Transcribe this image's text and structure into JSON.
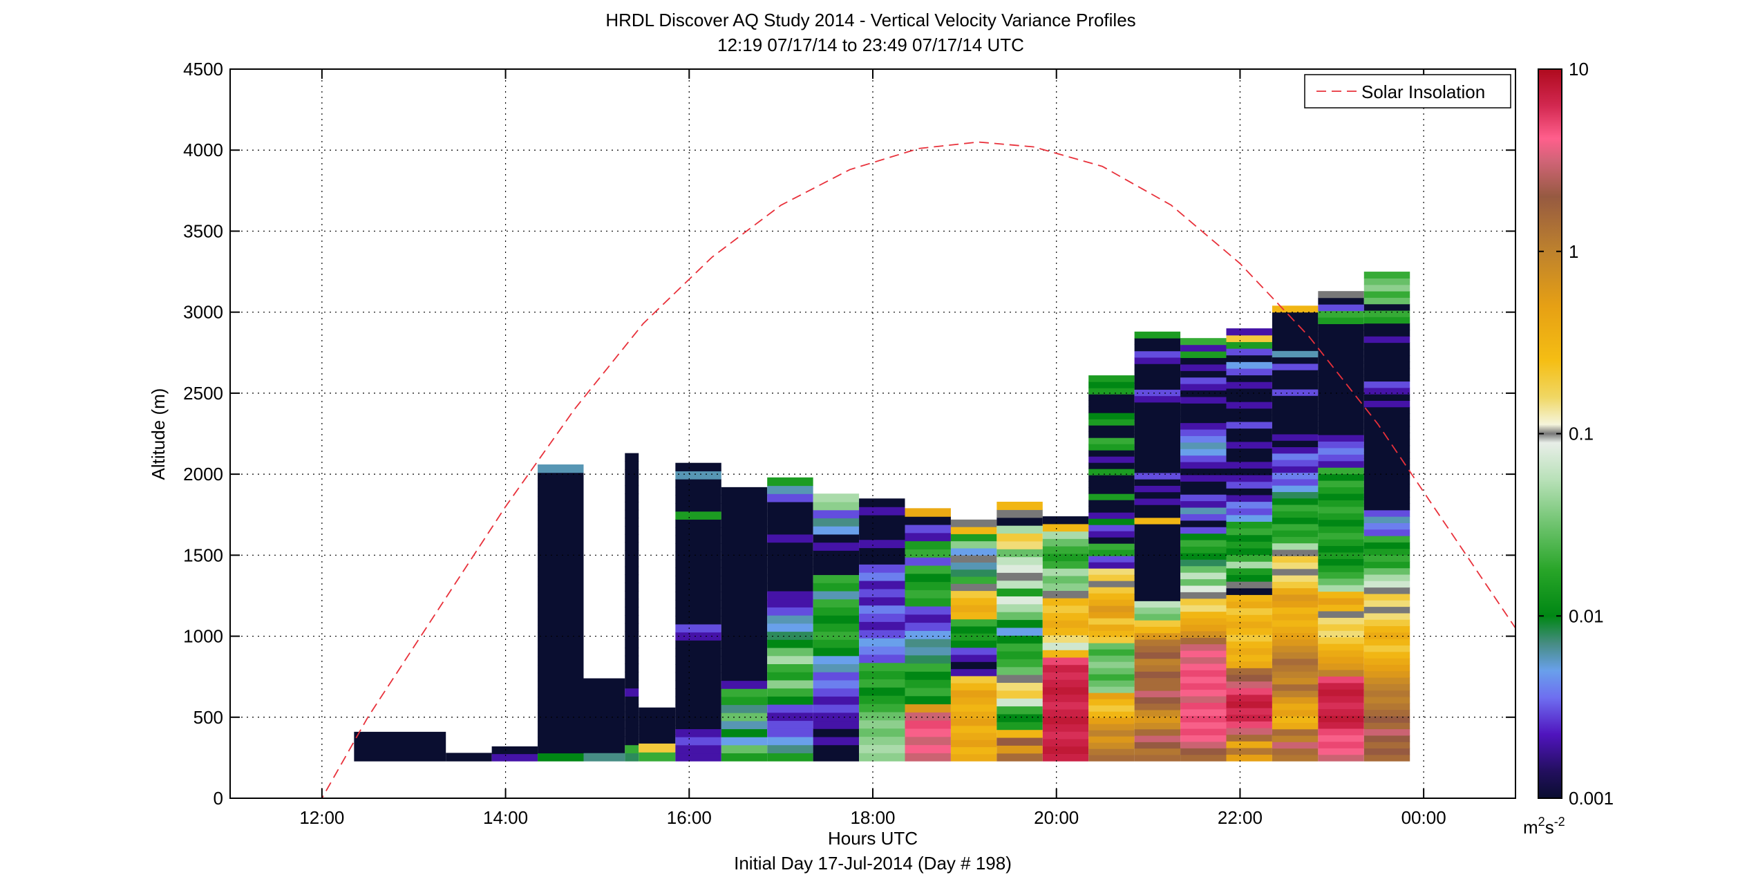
{
  "chart_data": {
    "type": "heatmap",
    "title": "HRDL Discover AQ Study 2014 - Vertical Velocity Variance Profiles",
    "subtitle": "12:19 07/17/14 to 23:49 07/17/14  UTC",
    "xlabel": "Hours UTC",
    "xlabel2": "Initial Day 17-Jul-2014 (Day # 198)",
    "ylabel": "Altitude (m)",
    "xlim": [
      11.0,
      25.0
    ],
    "ylim": [
      0,
      4500
    ],
    "x_ticks": [
      12,
      14,
      16,
      18,
      20,
      22,
      24
    ],
    "x_tick_labels": [
      "12:00",
      "14:00",
      "16:00",
      "18:00",
      "20:00",
      "22:00",
      "00:00"
    ],
    "y_ticks": [
      0,
      500,
      1000,
      1500,
      2000,
      2500,
      3000,
      3500,
      4000,
      4500
    ],
    "y_tick_labels": [
      "0",
      "500",
      "1000",
      "1500",
      "2000",
      "2500",
      "3000",
      "3500",
      "4000",
      "4500"
    ],
    "grid": true,
    "legend_position": "top-right",
    "colorbar": {
      "scale": "log",
      "range": [
        0.001,
        10
      ],
      "tick_values": [
        0.001,
        0.01,
        0.1,
        1,
        10
      ],
      "tick_labels": [
        "0.001",
        "0.01",
        "0.1",
        "1",
        "10"
      ],
      "unit_label": "m",
      "unit_sup1": "2",
      "unit_mid": "s",
      "unit_sup2": "-2"
    },
    "series": [
      {
        "name": "Solar Insolation",
        "type": "line",
        "style": "dashed",
        "color": "#e8303a",
        "points": [
          [
            11.8,
            -200
          ],
          [
            12.5,
            500
          ],
          [
            13.25,
            1150
          ],
          [
            14.0,
            1800
          ],
          [
            14.75,
            2400
          ],
          [
            15.5,
            2930
          ],
          [
            16.25,
            3340
          ],
          [
            17.0,
            3660
          ],
          [
            17.75,
            3880
          ],
          [
            18.5,
            4010
          ],
          [
            19.15,
            4050
          ],
          [
            19.75,
            4020
          ],
          [
            20.5,
            3900
          ],
          [
            21.25,
            3660
          ],
          [
            22.0,
            3300
          ],
          [
            22.75,
            2850
          ],
          [
            23.5,
            2310
          ],
          [
            24.25,
            1680
          ],
          [
            25.0,
            1050
          ]
        ]
      }
    ],
    "profiles": [
      {
        "start": 12.35,
        "end": 13.35,
        "bottom": 230,
        "top": 410,
        "values": [
          0.001
        ]
      },
      {
        "start": 13.35,
        "end": 13.85,
        "bottom": 230,
        "top": 280,
        "values": [
          0.001
        ]
      },
      {
        "start": 13.85,
        "end": 14.35,
        "bottom": 230,
        "top": 320,
        "values": [
          0.002,
          0.001
        ]
      },
      {
        "start": 14.35,
        "end": 14.85,
        "bottom": 230,
        "top": 2060,
        "values": [
          0.01,
          0.001,
          0.001,
          0.001,
          0.001,
          0.001,
          0.001,
          0.001,
          0.001,
          0.001,
          0.001,
          0.001,
          0.001,
          0.001,
          0.001,
          0.001,
          0.001,
          0.001,
          0.001,
          0.001,
          0.001,
          0.001,
          0.001,
          0.001,
          0.001,
          0.001,
          0.001,
          0.001,
          0.001,
          0.001,
          0.001,
          0.001,
          0.001,
          0.001,
          0.001,
          0.001,
          0.006
        ]
      },
      {
        "start": 14.85,
        "end": 15.3,
        "bottom": 230,
        "top": 740,
        "values": [
          0.007,
          0.001,
          0.001,
          0.001,
          0.001,
          0.001,
          0.001,
          0.001,
          0.001,
          0.001
        ]
      },
      {
        "start": 15.3,
        "end": 15.45,
        "bottom": 230,
        "top": 2130,
        "values": [
          0.008,
          0.02,
          0.001,
          0.001,
          0.001,
          0.001,
          0.001,
          0.001,
          0.002,
          0.001,
          0.001,
          0.001,
          0.001,
          0.001,
          0.001,
          0.001,
          0.001,
          0.001,
          0.001,
          0.001,
          0.001,
          0.001,
          0.001,
          0.001,
          0.001,
          0.001,
          0.001,
          0.001,
          0.001,
          0.001,
          0.001,
          0.001,
          0.001,
          0.001,
          0.001,
          0.001,
          0.001,
          0.001
        ]
      },
      {
        "start": 15.45,
        "end": 15.85,
        "bottom": 230,
        "top": 560,
        "values": [
          0.02,
          0.2,
          0.001,
          0.001,
          0.001,
          0.001
        ]
      },
      {
        "start": 15.85,
        "end": 16.35,
        "bottom": 230,
        "top": 2070,
        "values": [
          0.002,
          0.002,
          0.003,
          0.002,
          0.001,
          0.001,
          0.001,
          0.001,
          0.001,
          0.001,
          0.001,
          0.001,
          0.001,
          0.001,
          0.001,
          0.002,
          0.003,
          0.001,
          0.001,
          0.001,
          0.001,
          0.001,
          0.001,
          0.001,
          0.001,
          0.001,
          0.001,
          0.001,
          0.001,
          0.001,
          0.015,
          0.001,
          0.001,
          0.001,
          0.001,
          0.006,
          0.001
        ]
      },
      {
        "start": 16.35,
        "end": 16.85,
        "bottom": 230,
        "top": 1920,
        "values": [
          0.015,
          0.03,
          0.005,
          0.01,
          0.006,
          0.03,
          0.007,
          0.015,
          0.02,
          0.002,
          0.001,
          0.001,
          0.001,
          0.001,
          0.001,
          0.001,
          0.001,
          0.001,
          0.001,
          0.001,
          0.001,
          0.001,
          0.001,
          0.001,
          0.001,
          0.001,
          0.001,
          0.001,
          0.001,
          0.001,
          0.001,
          0.001,
          0.001,
          0.001
        ]
      },
      {
        "start": 16.85,
        "end": 17.35,
        "bottom": 230,
        "top": 1980,
        "values": [
          0.015,
          0.007,
          0.005,
          0.003,
          0.003,
          0.002,
          0.003,
          0.01,
          0.02,
          0.04,
          0.015,
          0.02,
          0.05,
          0.03,
          0.01,
          0.008,
          0.005,
          0.006,
          0.003,
          0.002,
          0.002,
          0.001,
          0.001,
          0.001,
          0.001,
          0.001,
          0.001,
          0.002,
          0.001,
          0.001,
          0.001,
          0.001,
          0.003,
          0.006,
          0.015
        ]
      },
      {
        "start": 17.35,
        "end": 17.85,
        "bottom": 230,
        "top": 1880,
        "values": [
          0.001,
          0.001,
          0.002,
          0.001,
          0.002,
          0.002,
          0.003,
          0.002,
          0.003,
          0.004,
          0.003,
          0.006,
          0.005,
          0.01,
          0.015,
          0.02,
          0.015,
          0.01,
          0.015,
          0.02,
          0.006,
          0.015,
          0.02,
          0.001,
          0.001,
          0.001,
          0.002,
          0.001,
          0.005,
          0.007,
          0.003,
          0.04,
          0.05
        ]
      },
      {
        "start": 17.85,
        "end": 18.35,
        "bottom": 230,
        "top": 1850,
        "values": [
          0.04,
          0.05,
          0.04,
          0.03,
          0.04,
          0.03,
          0.02,
          0.015,
          0.01,
          0.02,
          0.015,
          0.02,
          0.003,
          0.004,
          0.005,
          0.003,
          0.002,
          0.003,
          0.004,
          0.002,
          0.003,
          0.002,
          0.004,
          0.003,
          0.001,
          0.001,
          0.002,
          0.001,
          0.001,
          0.001,
          0.002,
          0.001
        ]
      },
      {
        "start": 18.35,
        "end": 18.85,
        "bottom": 230,
        "top": 1790,
        "values": [
          3,
          4,
          3,
          4,
          5,
          3,
          0.6,
          0.01,
          0.02,
          0.015,
          0.01,
          0.02,
          0.008,
          0.006,
          0.007,
          0.005,
          0.003,
          0.002,
          0.003,
          0.015,
          0.02,
          0.015,
          0.01,
          0.02,
          0.003,
          0.02,
          0.015,
          0.002,
          0.003,
          0.001,
          0.4
        ]
      },
      {
        "start": 18.85,
        "end": 19.35,
        "bottom": 230,
        "top": 1720,
        "values": [
          0.4,
          0.3,
          0.5,
          0.4,
          0.3,
          0.5,
          0.4,
          0.3,
          0.4,
          0.5,
          0.3,
          0.2,
          0.002,
          0.001,
          0.002,
          0.003,
          0.01,
          0.015,
          0.01,
          0.02,
          0.3,
          0.4,
          0.3,
          0.2,
          0.1,
          0.02,
          0.008,
          0.006,
          0.1,
          0.005,
          0.04,
          0.015,
          0.3,
          0.1
        ]
      },
      {
        "start": 19.35,
        "end": 19.85,
        "bottom": 230,
        "top": 1830,
        "values": [
          1.5,
          0.6,
          2,
          0.3,
          0.015,
          0.01,
          0.02,
          0.07,
          0.2,
          0.15,
          0.1,
          0.03,
          0.02,
          0.015,
          0.02,
          0.01,
          0.005,
          0.01,
          0.03,
          0.05,
          0.08,
          0.015,
          0.06,
          0.1,
          0.08,
          0.06,
          0.03,
          0.15,
          0.2,
          0.05,
          0.001,
          0.1,
          0.3
        ]
      },
      {
        "start": 19.85,
        "end": 20.35,
        "bottom": 230,
        "top": 1740,
        "values": [
          7,
          8,
          7,
          6,
          7,
          8,
          7,
          6,
          7,
          8,
          7,
          6,
          7,
          5,
          0.3,
          0.07,
          0.15,
          0.3,
          0.4,
          0.3,
          0.2,
          0.3,
          0.1,
          0.04,
          0.03,
          0.05,
          0.02,
          0.015,
          0.02,
          0.03,
          0.05,
          0.3,
          0.001
        ]
      },
      {
        "start": 20.35,
        "end": 20.85,
        "bottom": 230,
        "top": 2610,
        "values": [
          1.5,
          1.2,
          0.8,
          0.6,
          1,
          0.7,
          0.5,
          0.3,
          0.2,
          0.3,
          0.5,
          0.04,
          0.03,
          0.02,
          0.03,
          0.04,
          0.03,
          0.02,
          0.03,
          0.2,
          0.3,
          0.4,
          0.2,
          0.5,
          0.6,
          0.4,
          0.3,
          0.2,
          0.1,
          0.2,
          0.15,
          0.002,
          0.003,
          0.015,
          0.02,
          0.001,
          0.002,
          0.003,
          0.01,
          0.002,
          0.001,
          0.001,
          0.015,
          0.001,
          0.001,
          0.001,
          0.015,
          0.001,
          0.002,
          0.001,
          0.015,
          0.02,
          0.001,
          0.001,
          0.015,
          0.01,
          0.001,
          0.001,
          0.001,
          0.015,
          0.01,
          0.015
        ]
      },
      {
        "start": 20.85,
        "end": 21.35,
        "bottom": 230,
        "top": 2880,
        "values": [
          1.5,
          1.2,
          2,
          3,
          1.5,
          0.8,
          0.6,
          0.8,
          1.5,
          2,
          3,
          1.5,
          1.5,
          2,
          1.2,
          1,
          2,
          1.5,
          1.2,
          0.6,
          0.3,
          0.2,
          0.03,
          0.04,
          0.06,
          0.001,
          0.001,
          0.001,
          0.001,
          0.001,
          0.001,
          0.001,
          0.001,
          0.001,
          0.001,
          0.001,
          0.001,
          0.3,
          0.001,
          0.001,
          0.002,
          0.001,
          0.002,
          0.001,
          0.003,
          0.001,
          0.001,
          0.001,
          0.001,
          0.001,
          0.001,
          0.001,
          0.001,
          0.001,
          0.001,
          0.001,
          0.002,
          0.003,
          0.001,
          0.001,
          0.001,
          0.001,
          0.002,
          0.003,
          0.001,
          0.001,
          0.015
        ]
      },
      {
        "start": 21.35,
        "end": 21.85,
        "bottom": 230,
        "top": 2840,
        "values": [
          1.5,
          2,
          3,
          4,
          5,
          4,
          5,
          4,
          5,
          3,
          4,
          5,
          4,
          5,
          4,
          3,
          4,
          3,
          1.5,
          0.7,
          0.5,
          0.4,
          0.3,
          0.15,
          0.2,
          0.1,
          0.08,
          0.03,
          0.06,
          0.03,
          0.008,
          0.01,
          0.015,
          0.02,
          0.01,
          0.003,
          0.001,
          0.003,
          0.006,
          0.002,
          0.003,
          0.001,
          0.001,
          0.002,
          0.001,
          0.002,
          0.003,
          0.005,
          0.006,
          0.004,
          0.003,
          0.002,
          0.001,
          0.001,
          0.001,
          0.002,
          0.001,
          0.002,
          0.003,
          0.001,
          0.002,
          0.001,
          0.015,
          0.002,
          0.02
        ]
      },
      {
        "start": 21.85,
        "end": 22.35,
        "bottom": 230,
        "top": 2900,
        "values": [
          0.5,
          1.2,
          0.4,
          1.5,
          3,
          5,
          7,
          6,
          8,
          7,
          5,
          3,
          2,
          1.5,
          0.4,
          0.3,
          0.4,
          0.3,
          0.2,
          0.3,
          0.4,
          0.3,
          0.2,
          0.4,
          0.3,
          0.001,
          0.1,
          0.01,
          0.015,
          0.05,
          0.02,
          0.01,
          0.015,
          0.01,
          0.02,
          0.015,
          0.005,
          0.003,
          0.004,
          0.002,
          0.001,
          0.003,
          0.002,
          0.001,
          0.002,
          0.001,
          0.001,
          0.002,
          0.001,
          0.001,
          0.003,
          0.001,
          0.001,
          0.002,
          0.001,
          0.001,
          0.002,
          0.001,
          0.003,
          0.005,
          0.001,
          0.003,
          0.015,
          0.2,
          0.002
        ]
      },
      {
        "start": 22.35,
        "end": 22.85,
        "bottom": 230,
        "top": 3040,
        "values": [
          1.2,
          1.5,
          3,
          1,
          1.5,
          0.4,
          0.3,
          0.5,
          0.4,
          0.6,
          1,
          1.5,
          0.8,
          1,
          1.2,
          1.5,
          1,
          0.8,
          0.6,
          0.5,
          0.4,
          0.3,
          0.4,
          0.3,
          0.5,
          0.6,
          0.4,
          0.2,
          0.15,
          0.1,
          0.15,
          0.2,
          0.1,
          0.05,
          0.02,
          0.015,
          0.02,
          0.01,
          0.015,
          0.02,
          0.01,
          0.008,
          0.005,
          0.003,
          0.004,
          0.002,
          0.003,
          0.004,
          0.002,
          0.001,
          0.002,
          0.001,
          0.001,
          0.001,
          0.001,
          0.001,
          0.001,
          0.003,
          0.001,
          0.001,
          0.001,
          0.003,
          0.001,
          0.006,
          0.001,
          0.001,
          0.001,
          0.001,
          0.001,
          0.001,
          0.3
        ]
      },
      {
        "start": 22.85,
        "end": 23.35,
        "bottom": 230,
        "top": 3130,
        "values": [
          3,
          4,
          5,
          4,
          5,
          7,
          8,
          7,
          6,
          7,
          8,
          7,
          5,
          1,
          0.6,
          0.5,
          0.4,
          0.3,
          0.2,
          0.15,
          0.2,
          0.15,
          0.1,
          0.3,
          0.5,
          0.3,
          0.05,
          0.03,
          0.02,
          0.015,
          0.01,
          0.015,
          0.01,
          0.015,
          0.02,
          0.015,
          0.01,
          0.015,
          0.02,
          0.015,
          0.01,
          0.015,
          0.02,
          0.01,
          0.02,
          0.002,
          0.003,
          0.004,
          0.003,
          0.002,
          0.001,
          0.001,
          0.001,
          0.001,
          0.001,
          0.001,
          0.001,
          0.001,
          0.001,
          0.001,
          0.001,
          0.001,
          0.001,
          0.001,
          0.001,
          0.001,
          0.001,
          0.015,
          0.02,
          0.003,
          0.001,
          0.1
        ]
      },
      {
        "start": 23.35,
        "end": 23.85,
        "bottom": 230,
        "top": 3250,
        "values": [
          1.5,
          2,
          1.5,
          2,
          3,
          1.5,
          2,
          1.5,
          1.2,
          1,
          1.2,
          1,
          0.8,
          0.6,
          0.5,
          0.4,
          0.3,
          0.2,
          0.3,
          0.4,
          0.3,
          0.2,
          0.15,
          0.1,
          0.15,
          0.2,
          0.1,
          0.07,
          0.05,
          0.03,
          0.015,
          0.02,
          0.015,
          0.01,
          0.02,
          0.003,
          0.004,
          0.006,
          0.003,
          0.001,
          0.001,
          0.001,
          0.001,
          0.001,
          0.001,
          0.001,
          0.001,
          0.001,
          0.001,
          0.001,
          0.001,
          0.001,
          0.001,
          0.001,
          0.001,
          0.002,
          0.001,
          0.002,
          0.003,
          0.001,
          0.001,
          0.001,
          0.001,
          0.001,
          0.001,
          0.002,
          0.001,
          0.001,
          0.015,
          0.02,
          0.001,
          0.03,
          0.02,
          0.04,
          0.03,
          0.02
        ]
      }
    ]
  }
}
